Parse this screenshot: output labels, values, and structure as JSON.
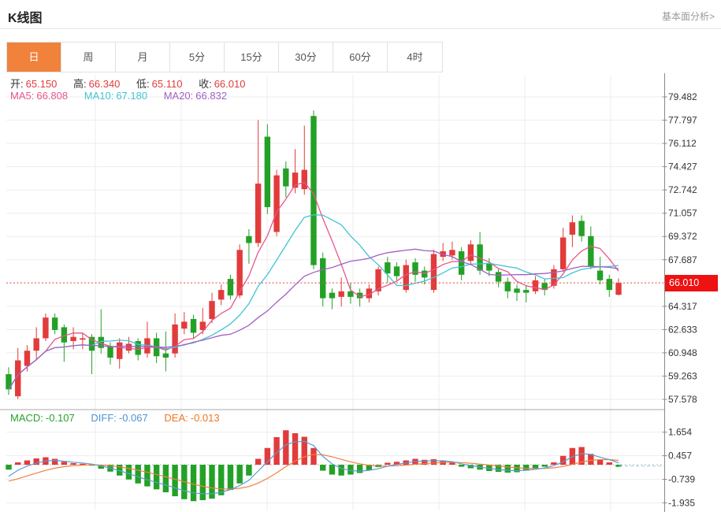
{
  "header": {
    "title": "K线图",
    "link": "基本面分析>"
  },
  "tabs": {
    "items": [
      "日",
      "周",
      "月",
      "5分",
      "15分",
      "30分",
      "60分",
      "4时"
    ],
    "active_index": 0
  },
  "quote": {
    "open_label": "开:",
    "open": "65.150",
    "high_label": "高:",
    "high": "66.340",
    "low_label": "低:",
    "low": "65.110",
    "close_label": "收:",
    "close": "66.010"
  },
  "ma_info": {
    "ma5_label": "MA5:",
    "ma5": "66.808",
    "ma10_label": "MA10:",
    "ma10": "67.180",
    "ma20_label": "MA20:",
    "ma20": "66.832"
  },
  "macd_info": {
    "macd_label": "MACD:",
    "macd": "-0.107",
    "diff_label": "DIFF:",
    "diff": "-0.067",
    "dea_label": "DEA:",
    "dea": "-0.013"
  },
  "colors": {
    "up": "#e23b3b",
    "down": "#23a126",
    "ma5": "#e7558b",
    "ma10": "#43c2d4",
    "ma20": "#a25fc2",
    "diff_line": "#5b9bd5",
    "dea_line": "#f08040",
    "price_line": "#e64545",
    "price_badge_bg": "#ee1212",
    "tab_active_bg": "#f0823c",
    "grid": "#ededed",
    "axis": "#888888",
    "tick_text": "#333333"
  },
  "chart_data": {
    "type": "candlestick",
    "title": "K线图",
    "legend": [
      "MA5",
      "MA10",
      "MA20",
      "MACD",
      "DIFF",
      "DEA"
    ],
    "main_pane": {
      "yticks": [
        79.482,
        77.797,
        76.112,
        74.427,
        72.742,
        71.057,
        69.372,
        67.687,
        64.317,
        62.633,
        60.948,
        59.263,
        57.578
      ],
      "ylim": [
        56.9,
        81.3
      ],
      "current_price": 66.01,
      "ma_periods": [
        5,
        10,
        20
      ],
      "candles_ohlc": [
        [
          59.4,
          59.9,
          57.9,
          58.3
        ],
        [
          57.8,
          61.3,
          57.6,
          60.4
        ],
        [
          60.0,
          61.5,
          59.6,
          61.1
        ],
        [
          61.1,
          62.8,
          60.5,
          62.0
        ],
        [
          62.0,
          63.8,
          61.8,
          63.5
        ],
        [
          63.5,
          63.8,
          62.3,
          62.6
        ],
        [
          62.8,
          63.0,
          60.3,
          61.7
        ],
        [
          61.8,
          62.8,
          61.2,
          62.1
        ],
        [
          61.9,
          62.4,
          61.2,
          62.0
        ],
        [
          62.1,
          62.3,
          59.4,
          61.1
        ],
        [
          62.1,
          64.1,
          60.9,
          61.3
        ],
        [
          61.4,
          61.7,
          60.1,
          60.6
        ],
        [
          60.5,
          62.0,
          59.8,
          61.7
        ],
        [
          61.1,
          62.1,
          60.9,
          61.6
        ],
        [
          61.8,
          62.0,
          60.4,
          60.8
        ],
        [
          60.9,
          63.2,
          60.6,
          62.0
        ],
        [
          62.0,
          62.4,
          60.2,
          60.7
        ],
        [
          60.9,
          62.5,
          59.6,
          60.6
        ],
        [
          60.9,
          63.8,
          60.6,
          63.0
        ],
        [
          62.7,
          63.9,
          62.3,
          63.2
        ],
        [
          63.4,
          63.7,
          62.0,
          62.4
        ],
        [
          62.6,
          64.2,
          62.3,
          63.2
        ],
        [
          63.4,
          65.3,
          63.1,
          64.7
        ],
        [
          64.8,
          65.9,
          64.4,
          65.5
        ],
        [
          66.3,
          66.6,
          64.8,
          65.1
        ],
        [
          65.1,
          68.8,
          64.9,
          68.4
        ],
        [
          69.4,
          69.9,
          67.4,
          68.9
        ],
        [
          68.9,
          77.8,
          68.6,
          73.2
        ],
        [
          76.6,
          77.5,
          71.0,
          71.5
        ],
        [
          69.7,
          74.2,
          69.4,
          73.8
        ],
        [
          74.3,
          74.8,
          72.2,
          73.0
        ],
        [
          72.9,
          75.7,
          72.5,
          74.0
        ],
        [
          72.8,
          77.4,
          72.4,
          74.2
        ],
        [
          78.1,
          78.5,
          67.0,
          67.3
        ],
        [
          67.8,
          68.2,
          64.3,
          64.9
        ],
        [
          65.3,
          65.6,
          64.1,
          64.9
        ],
        [
          65.0,
          66.4,
          64.3,
          65.4
        ],
        [
          65.4,
          66.0,
          64.5,
          65.0
        ],
        [
          65.3,
          65.6,
          64.3,
          64.9
        ],
        [
          64.9,
          65.9,
          64.6,
          65.6
        ],
        [
          65.4,
          67.2,
          65.1,
          67.0
        ],
        [
          67.5,
          67.9,
          66.0,
          66.7
        ],
        [
          67.2,
          67.5,
          66.2,
          66.5
        ],
        [
          65.5,
          67.7,
          65.3,
          67.3
        ],
        [
          67.5,
          67.8,
          66.1,
          66.6
        ],
        [
          66.9,
          67.2,
          65.9,
          66.4
        ],
        [
          65.5,
          68.4,
          65.3,
          68.1
        ],
        [
          67.9,
          68.9,
          67.6,
          68.3
        ],
        [
          68.0,
          69.0,
          67.7,
          68.4
        ],
        [
          68.3,
          68.6,
          66.2,
          66.6
        ],
        [
          67.6,
          69.1,
          67.3,
          68.8
        ],
        [
          68.8,
          69.7,
          66.6,
          66.9
        ],
        [
          67.4,
          67.8,
          66.5,
          66.9
        ],
        [
          66.8,
          67.0,
          65.7,
          66.1
        ],
        [
          66.1,
          66.4,
          64.9,
          65.4
        ],
        [
          65.6,
          65.9,
          64.7,
          65.3
        ],
        [
          65.5,
          65.8,
          64.6,
          65.3
        ],
        [
          65.4,
          66.5,
          65.2,
          66.2
        ],
        [
          66.0,
          66.3,
          65.1,
          65.5
        ],
        [
          65.8,
          67.3,
          65.6,
          67.0
        ],
        [
          67.0,
          70.0,
          66.8,
          69.3
        ],
        [
          69.5,
          70.9,
          68.6,
          70.4
        ],
        [
          70.5,
          70.9,
          69.0,
          69.4
        ],
        [
          69.4,
          70.1,
          67.0,
          67.2
        ],
        [
          66.9,
          67.9,
          65.9,
          66.2
        ],
        [
          66.3,
          66.6,
          65.0,
          65.5
        ],
        [
          65.15,
          66.34,
          65.11,
          66.01
        ]
      ]
    },
    "macd_pane": {
      "yticks": [
        1.654,
        0.457,
        -0.739,
        -1.935
      ],
      "histogram": [
        -0.25,
        0.12,
        0.22,
        0.32,
        0.38,
        0.3,
        0.15,
        0.08,
        0.05,
        -0.05,
        -0.2,
        -0.35,
        -0.55,
        -0.75,
        -0.95,
        -1.1,
        -1.25,
        -1.4,
        -1.6,
        -1.75,
        -1.85,
        -1.8,
        -1.72,
        -1.55,
        -1.28,
        -0.95,
        -0.55,
        0.3,
        0.85,
        1.4,
        1.75,
        1.6,
        1.42,
        0.85,
        -0.3,
        -0.5,
        -0.55,
        -0.5,
        -0.42,
        -0.28,
        -0.12,
        0.1,
        0.15,
        0.22,
        0.3,
        0.25,
        0.28,
        0.22,
        0.12,
        -0.1,
        -0.18,
        -0.25,
        -0.32,
        -0.36,
        -0.4,
        -0.38,
        -0.3,
        -0.2,
        -0.1,
        0.12,
        0.45,
        0.85,
        0.9,
        0.55,
        0.25,
        0.12,
        -0.107
      ],
      "macd_value": -0.107,
      "diff_value": -0.067,
      "dea_value": -0.013
    }
  }
}
